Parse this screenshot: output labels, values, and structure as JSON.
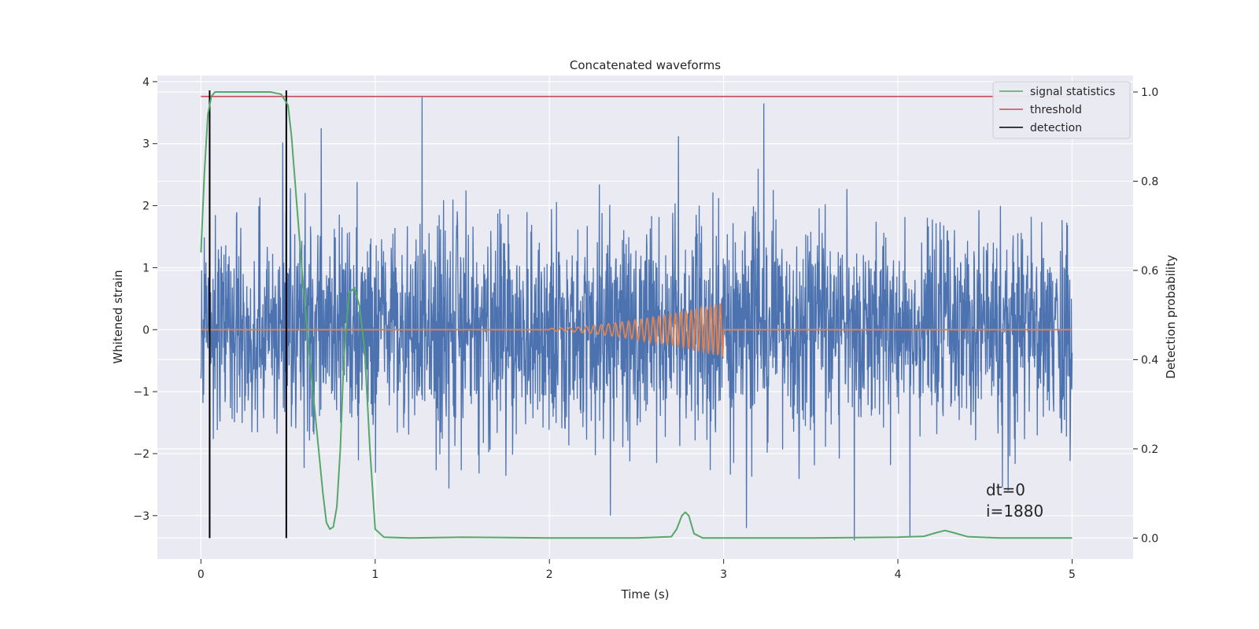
{
  "chart_data": {
    "type": "line",
    "title": "Concatenated waveforms",
    "xlabel": "Time (s)",
    "ylabel": "Whitened strain",
    "y2label": "Detection probability",
    "xlim": [
      -0.25,
      5.35
    ],
    "ylim": [
      -3.7,
      4.1
    ],
    "y2lim": [
      -0.047,
      1.037
    ],
    "xticks": [
      0,
      1,
      2,
      3,
      4,
      5
    ],
    "yticks": [
      -3,
      -2,
      -1,
      0,
      1,
      2,
      3,
      4
    ],
    "y2ticks": [
      0.0,
      0.2,
      0.4,
      0.6,
      0.8,
      1.0
    ],
    "grid": true,
    "legend_position": "top-right",
    "legend": [
      "signal statistics",
      "threshold",
      "detection"
    ],
    "colors": {
      "background": "#EAEAF2",
      "grid": "#FFFFFF",
      "strain": "#4C72B0",
      "waveform": "#DD8452",
      "signal_statistics": "#55A868",
      "threshold": "#C44E52",
      "detection": "#000000"
    },
    "annotations": [
      "dt=0",
      "i=1880"
    ],
    "strain_series": {
      "x_range": [
        0,
        5
      ],
      "typical_amplitude": 0.9,
      "max_peaks": [
        {
          "x": 1.27,
          "y": 3.75
        },
        {
          "x": 3.23,
          "y": 3.65
        },
        {
          "x": 0.69,
          "y": 3.25
        },
        {
          "x": 2.74,
          "y": 3.12
        },
        {
          "x": 0.47,
          "y": 3.02
        },
        {
          "x": 3.75,
          "y": -3.4
        },
        {
          "x": 4.07,
          "y": -3.35
        },
        {
          "x": 2.35,
          "y": -3.0
        },
        {
          "x": 3.13,
          "y": -3.2
        }
      ]
    },
    "waveform_series": {
      "x_range": [
        0,
        5
      ],
      "chirp_start": 2.0,
      "chirp_end": 3.0,
      "amplitude_start": 0.02,
      "amplitude_end": 0.45
    },
    "signal_statistics": {
      "x": [
        0.0,
        0.02,
        0.04,
        0.06,
        0.08,
        0.12,
        0.2,
        0.3,
        0.4,
        0.46,
        0.5,
        0.52,
        0.55,
        0.58,
        0.62,
        0.66,
        0.7,
        0.72,
        0.74,
        0.76,
        0.78,
        0.8,
        0.82,
        0.85,
        0.88,
        0.91,
        0.94,
        0.97,
        1.0,
        1.05,
        1.2,
        1.5,
        2.0,
        2.5,
        2.7,
        2.73,
        2.76,
        2.78,
        2.8,
        2.83,
        2.88,
        3.0,
        3.5,
        4.0,
        4.15,
        4.22,
        4.27,
        4.32,
        4.4,
        4.6,
        5.0
      ],
      "y": [
        0.64,
        0.82,
        0.95,
        0.99,
        1.0,
        1.0,
        1.0,
        1.0,
        1.0,
        0.995,
        0.97,
        0.9,
        0.75,
        0.6,
        0.42,
        0.26,
        0.1,
        0.035,
        0.02,
        0.025,
        0.07,
        0.2,
        0.4,
        0.55,
        0.56,
        0.52,
        0.42,
        0.2,
        0.02,
        0.002,
        0.0,
        0.002,
        0.0,
        0.0,
        0.003,
        0.02,
        0.05,
        0.058,
        0.05,
        0.01,
        0.0,
        0.0,
        0.0,
        0.002,
        0.004,
        0.012,
        0.017,
        0.012,
        0.003,
        0.0,
        0.0
      ]
    },
    "threshold_value": 0.99,
    "threshold_x": [
      0,
      5
    ],
    "detections_x": [
      0.05,
      0.49
    ]
  }
}
